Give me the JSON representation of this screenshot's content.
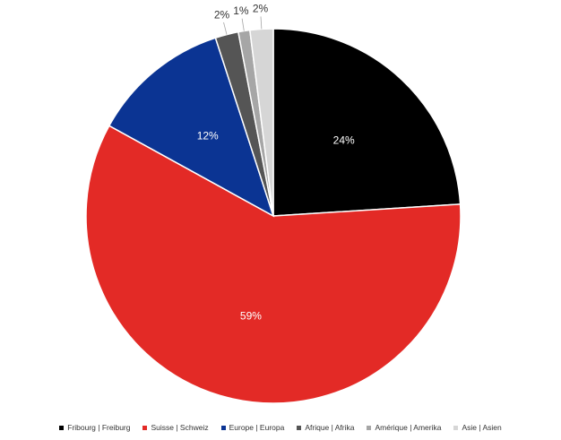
{
  "chart_data": {
    "type": "pie",
    "categories": [
      "Fribourg | Freiburg",
      "Suisse | Schweiz",
      "Europe | Europa",
      "Afrique | Afrika",
      "Amérique | Amerika",
      "Asie | Asien"
    ],
    "values": [
      24,
      59,
      12,
      2,
      1,
      2
    ],
    "data_labels": [
      "24%",
      "59%",
      "12%",
      "2%",
      "1%",
      "2%"
    ],
    "colors": [
      "#000000",
      "#e32a26",
      "#0b3493",
      "#555555",
      "#a6a6a6",
      "#d6d6d6"
    ],
    "label_colors": [
      "#ffffff",
      "#ffffff",
      "#ffffff",
      "#333333",
      "#333333",
      "#333333"
    ],
    "start_angle_deg": 0,
    "direction": "clockwise",
    "legend_position": "bottom"
  }
}
